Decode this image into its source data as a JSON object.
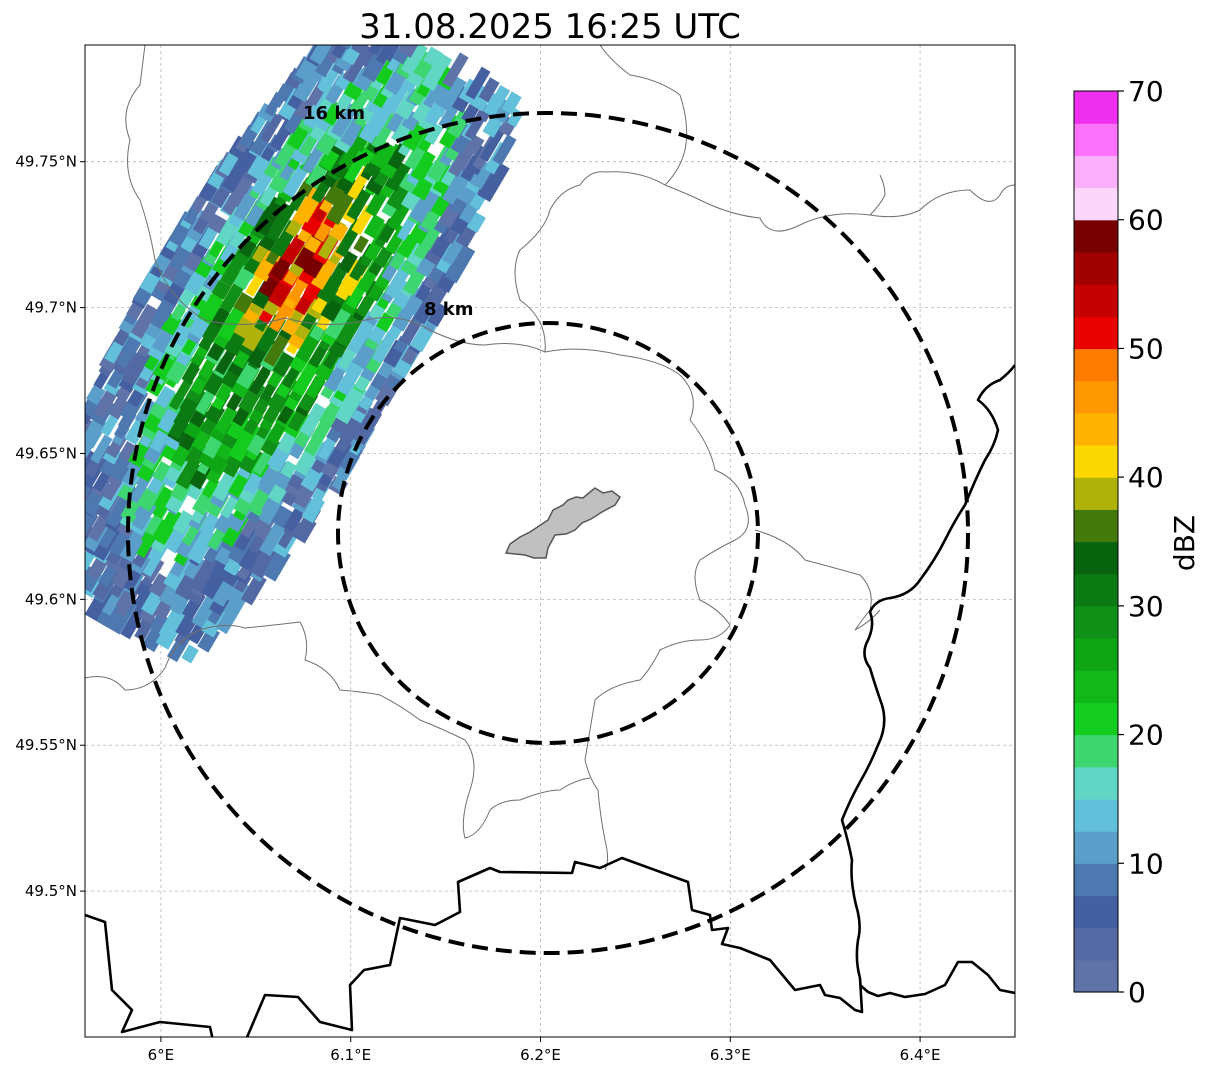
{
  "title": "31.08.2025 16:25 UTC",
  "map": {
    "lon_range": [
      5.96,
      6.45
    ],
    "lat_range": [
      49.45,
      49.79
    ],
    "lon_ticks": [
      {
        "value": 6.0,
        "label": "6°E"
      },
      {
        "value": 6.1,
        "label": "6.1°E"
      },
      {
        "value": 6.2,
        "label": "6.2°E"
      },
      {
        "value": 6.3,
        "label": "6.3°E"
      },
      {
        "value": 6.4,
        "label": "6.4°E"
      }
    ],
    "lat_ticks": [
      {
        "value": 49.75,
        "label": "49.75°N"
      },
      {
        "value": 49.7,
        "label": "49.7°N"
      },
      {
        "value": 49.65,
        "label": "49.65°N"
      },
      {
        "value": 49.6,
        "label": "49.6°N"
      },
      {
        "value": 49.55,
        "label": "49.55°N"
      },
      {
        "value": 49.5,
        "label": "49.5°N"
      }
    ],
    "grid": true,
    "range_rings": [
      {
        "label": "8 km",
        "km": 8
      },
      {
        "label": "16 km",
        "km": 16
      }
    ],
    "site_polygon_fill": "#c0c0c0"
  },
  "colorbar": {
    "label": "dBZ",
    "min": 0,
    "max": 70,
    "ticks": [
      {
        "value": 0,
        "label": "0"
      },
      {
        "value": 10,
        "label": "10"
      },
      {
        "value": 20,
        "label": "20"
      },
      {
        "value": 30,
        "label": "30"
      },
      {
        "value": 40,
        "label": "40"
      },
      {
        "value": 50,
        "label": "50"
      },
      {
        "value": 60,
        "label": "60"
      },
      {
        "value": 70,
        "label": "70"
      }
    ],
    "colors": [
      "#5f73a8",
      "#5369a3",
      "#4560a1",
      "#4d78b0",
      "#5a9ec9",
      "#62c0da",
      "#61d6c4",
      "#3dd671",
      "#14cc1e",
      "#12b81a",
      "#0fa616",
      "#109016",
      "#0c7a12",
      "#096410",
      "#447a0c",
      "#b0b20c",
      "#fdd800",
      "#ffb300",
      "#ff9800",
      "#ff7b00",
      "#e80000",
      "#c40000",
      "#a00000",
      "#780000",
      "#fbd8fb",
      "#fbb0fb",
      "#fb72fb",
      "#ef30ef"
    ]
  }
}
